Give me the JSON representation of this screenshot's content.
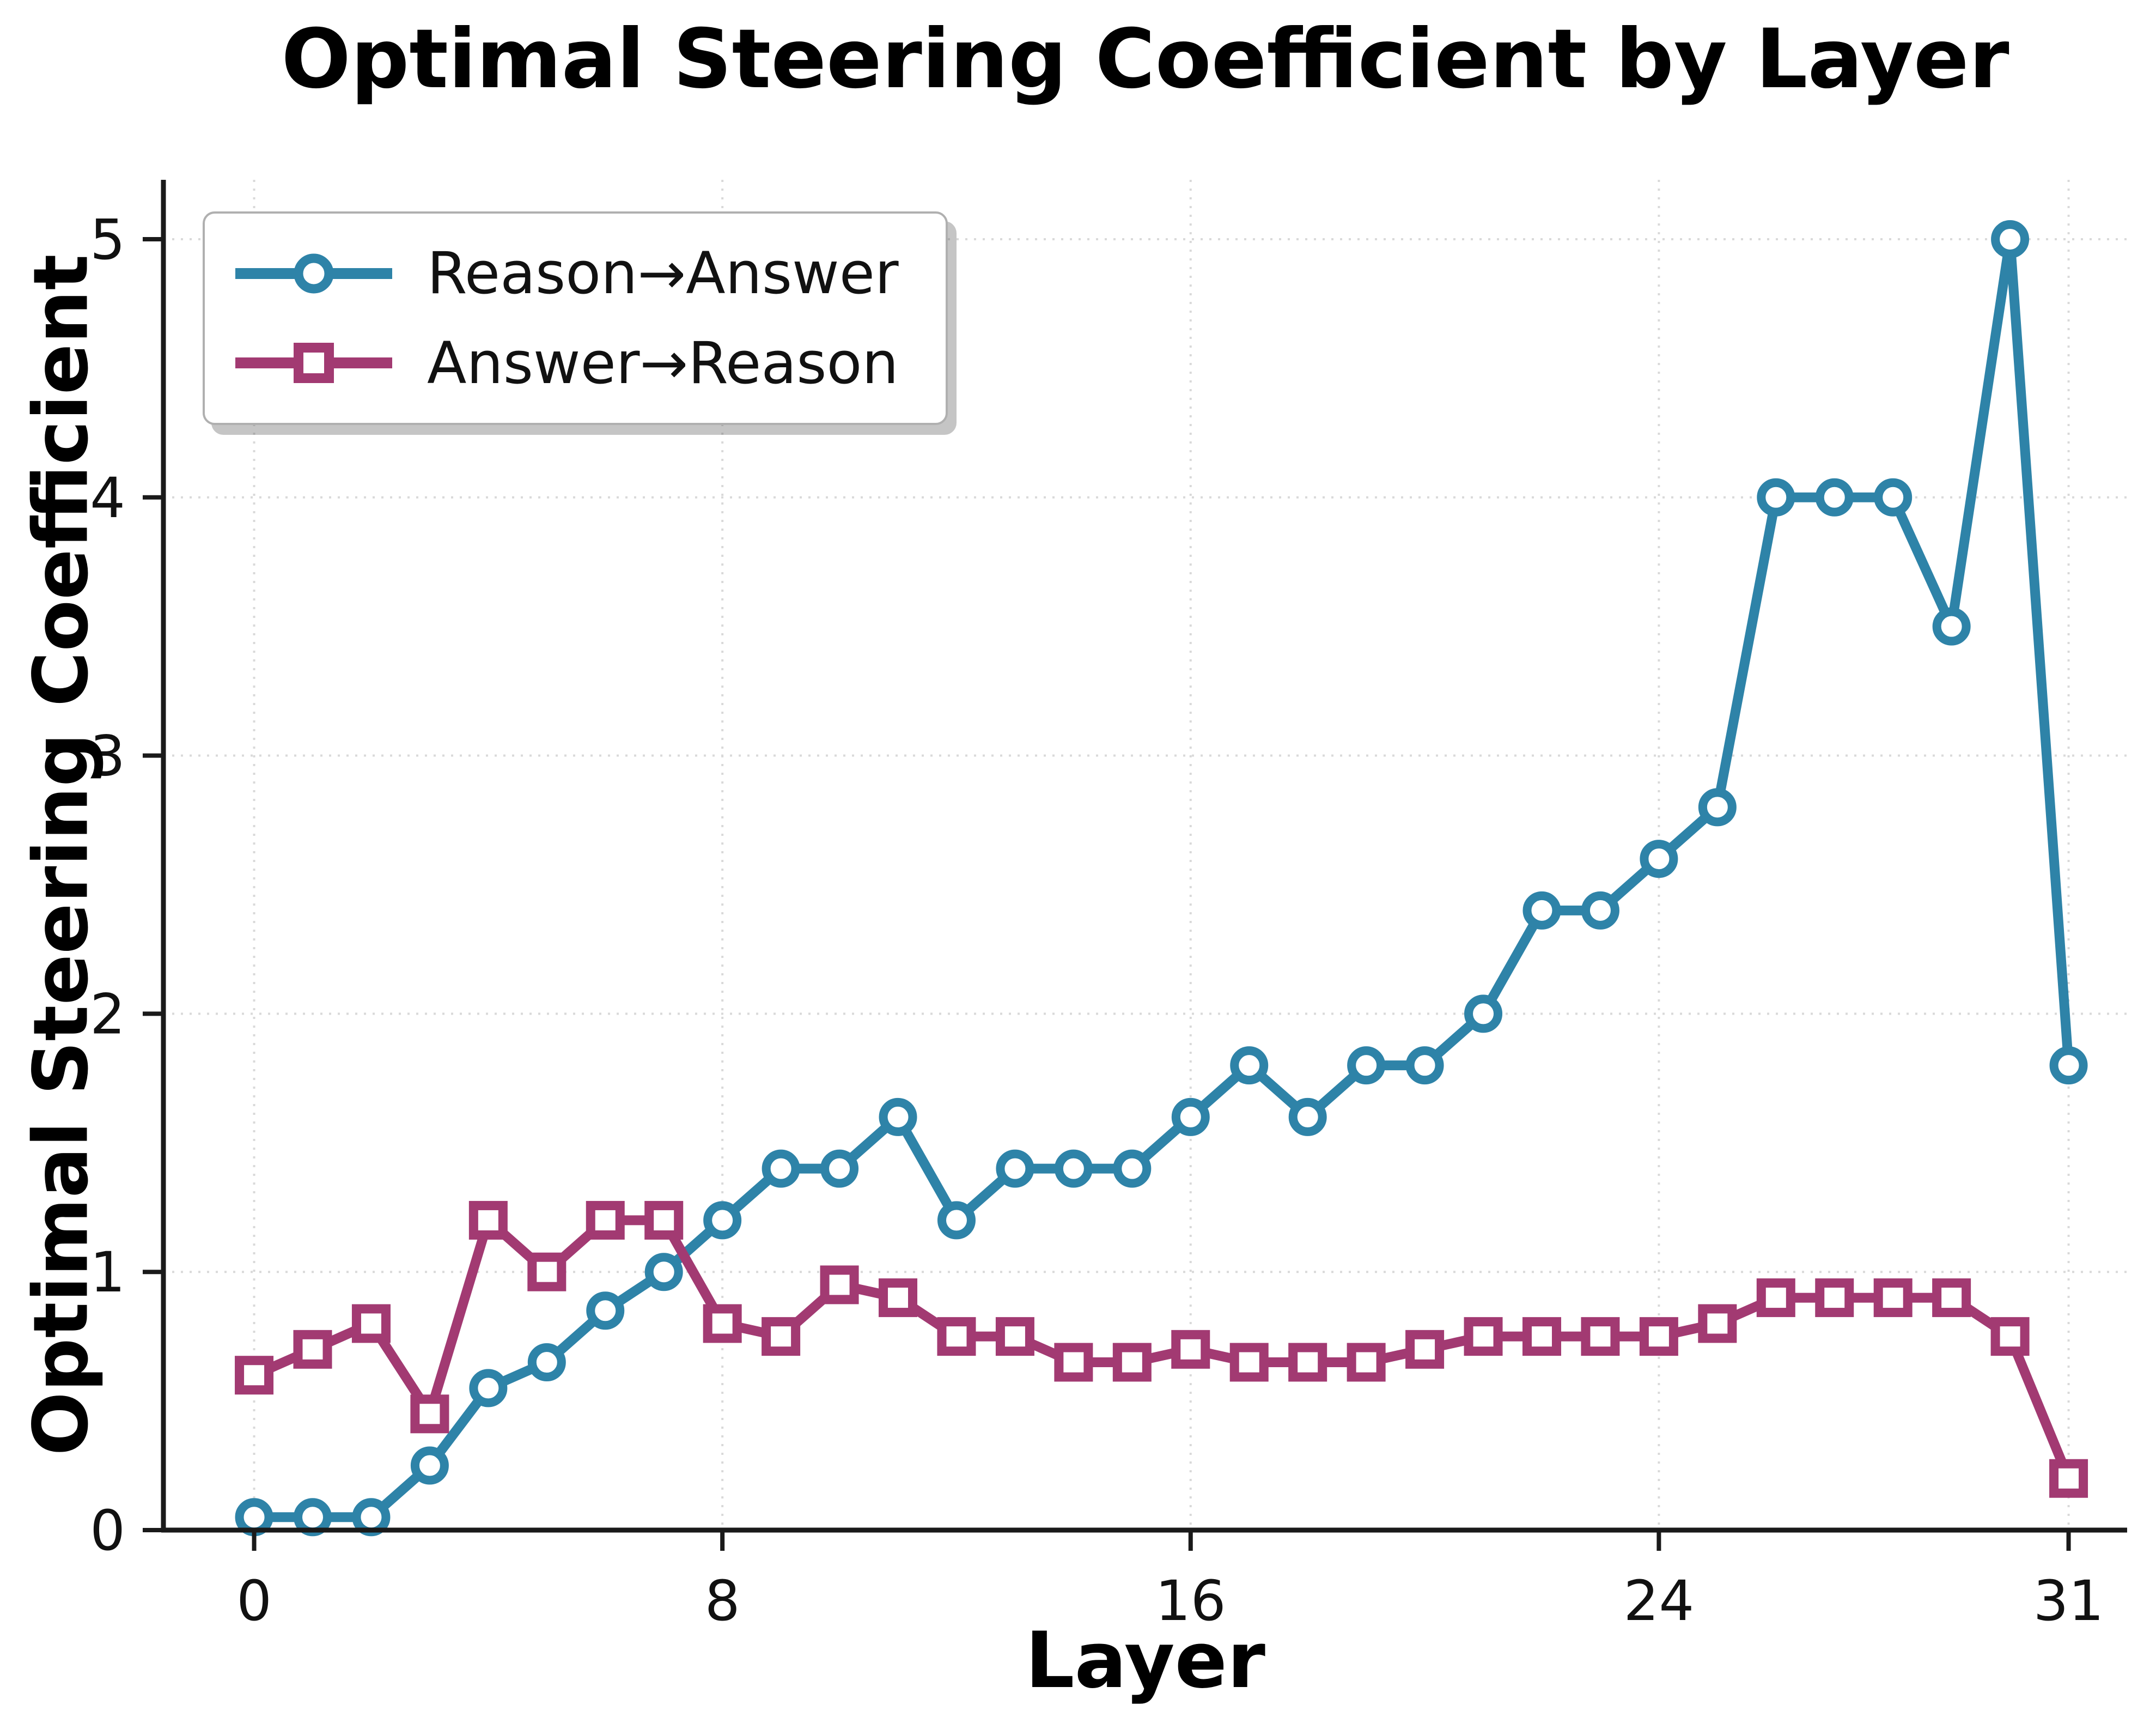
{
  "figure": {
    "title": "Optimal Steering Coefficient by Layer",
    "xlabel": "Layer",
    "ylabel": "Optimal Steering Coefficient"
  },
  "legend": {
    "items": [
      {
        "label": "Reason→Answer",
        "marker": "circle",
        "color": "#2e83a8"
      },
      {
        "label": "Answer→Reason",
        "marker": "square",
        "color": "#a23a72"
      }
    ]
  },
  "chart_data": {
    "type": "line",
    "title": "Optimal Steering Coefficient by Layer",
    "xlabel": "Layer",
    "ylabel": "Optimal Steering Coefficient",
    "x": [
      0,
      1,
      2,
      3,
      4,
      5,
      6,
      7,
      8,
      9,
      10,
      11,
      12,
      13,
      14,
      15,
      16,
      17,
      18,
      19,
      20,
      21,
      22,
      23,
      24,
      25,
      26,
      27,
      28,
      29,
      30,
      31
    ],
    "series": [
      {
        "name": "Reason→Answer",
        "color": "#2e83a8",
        "marker": "circle",
        "values": [
          0.05,
          0.05,
          0.05,
          0.25,
          0.55,
          0.65,
          0.85,
          1.0,
          1.2,
          1.4,
          1.4,
          1.6,
          1.2,
          1.4,
          1.4,
          1.4,
          1.6,
          1.8,
          1.6,
          1.8,
          1.8,
          2.0,
          2.4,
          2.4,
          2.6,
          2.8,
          4.0,
          4.0,
          4.0,
          3.5,
          5.0,
          1.8
        ]
      },
      {
        "name": "Answer→Reason",
        "color": "#a23a72",
        "marker": "square",
        "values": [
          0.6,
          0.7,
          0.8,
          0.45,
          1.2,
          1.0,
          1.2,
          1.2,
          0.8,
          0.75,
          0.95,
          0.9,
          0.75,
          0.75,
          0.65,
          0.65,
          0.7,
          0.65,
          0.65,
          0.65,
          0.7,
          0.75,
          0.75,
          0.75,
          0.75,
          0.8,
          0.9,
          0.9,
          0.9,
          0.9,
          0.75,
          0.2
        ]
      }
    ],
    "xticks": [
      0,
      8,
      16,
      24,
      31
    ],
    "yticks": [
      0,
      1,
      2,
      3,
      4,
      5
    ],
    "xlim": [
      -1.55,
      32.0
    ],
    "ylim": [
      0,
      5.23
    ],
    "grid": true,
    "grid_style": "dotted",
    "legend_position": "upper left",
    "axis_color": "#1a1a1a",
    "grid_color": "#d9d9d9",
    "tick_label_color": "#111111"
  }
}
